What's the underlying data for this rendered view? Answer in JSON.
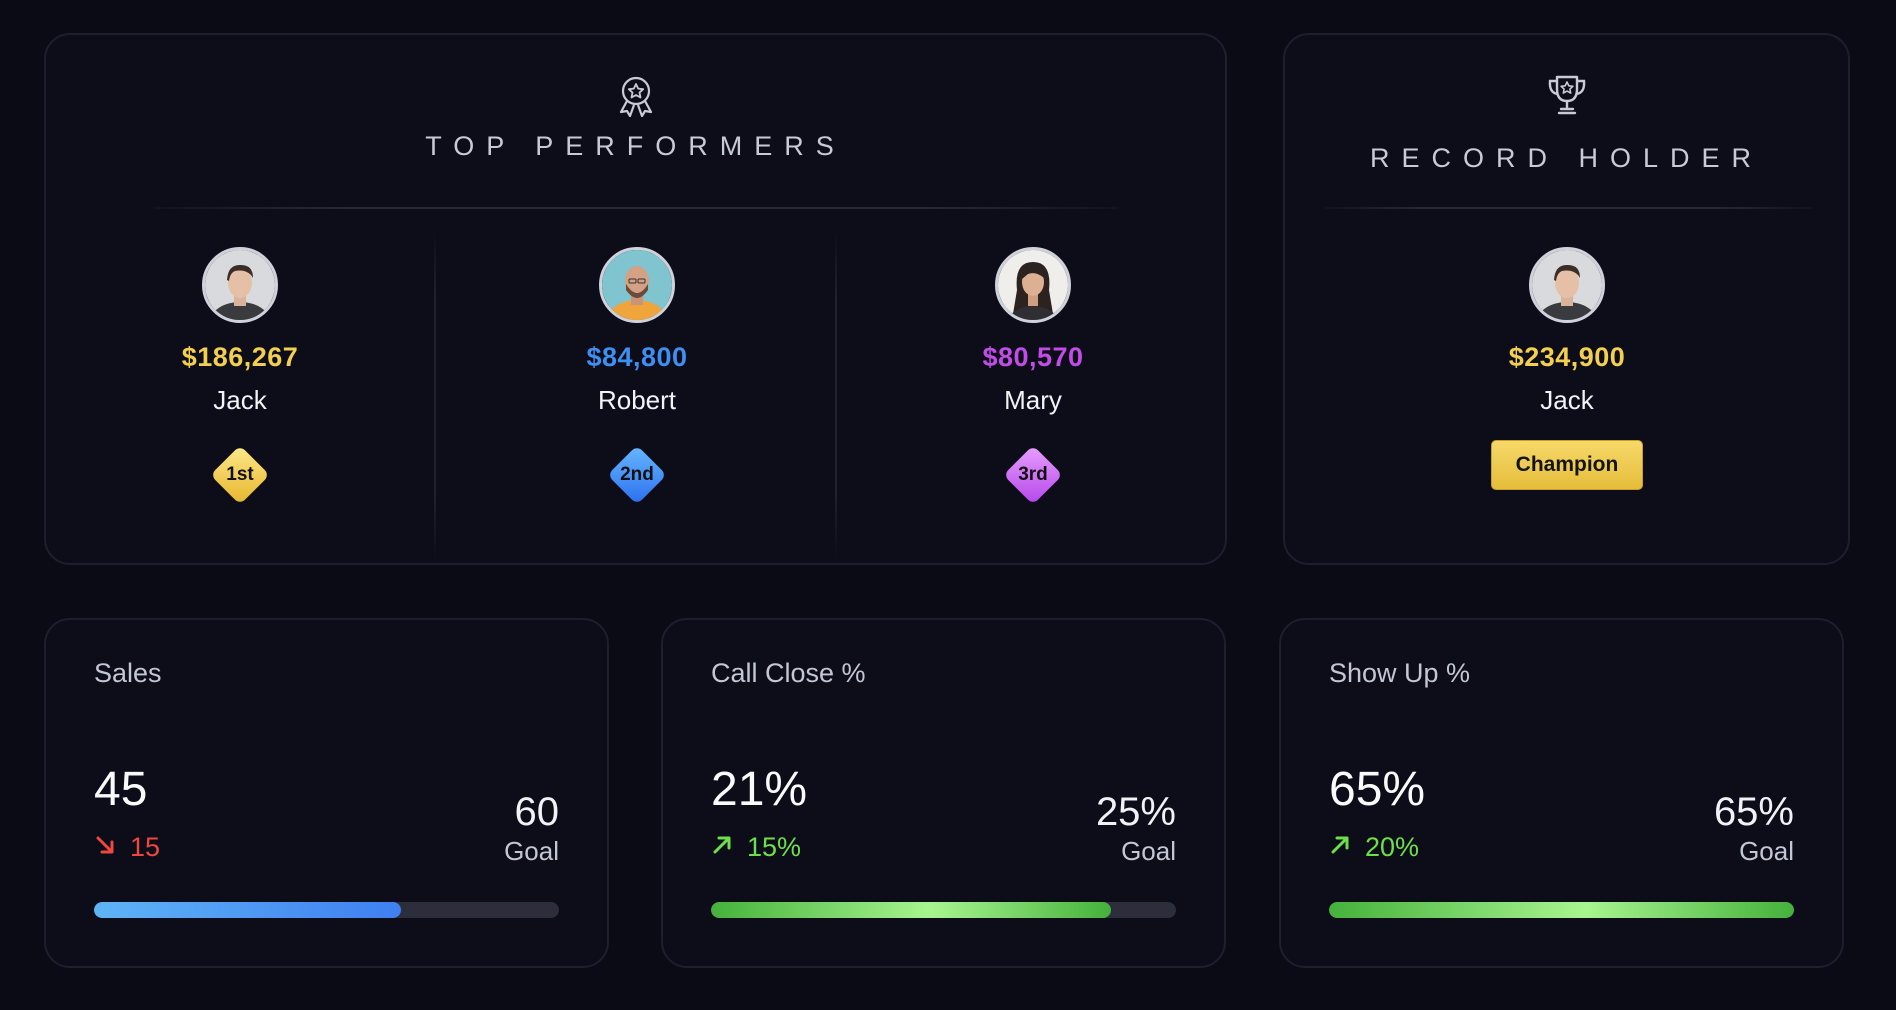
{
  "top_performers": {
    "title": "TOP PERFORMERS",
    "icon": "award-ribbon-icon",
    "performers": [
      {
        "name": "Jack",
        "amount": "$186,267",
        "rank": "1st",
        "color": "#f3cf4f",
        "badge_colors": [
          "#fde98a",
          "#e6b52c"
        ]
      },
      {
        "name": "Robert",
        "amount": "$84,800",
        "rank": "2nd",
        "color": "#3d8ff2",
        "badge_colors": [
          "#68b8ff",
          "#2b6fef"
        ]
      },
      {
        "name": "Mary",
        "amount": "$80,570",
        "rank": "3rd",
        "color": "#c24ce8",
        "badge_colors": [
          "#e8a0ff",
          "#b546ea"
        ]
      }
    ]
  },
  "record_holder": {
    "title": "RECORD HOLDER",
    "icon": "trophy-icon",
    "name": "Jack",
    "amount": "$234,900",
    "badge": "Champion",
    "color": "#f3cf4f"
  },
  "metrics": [
    {
      "label": "Sales",
      "value": "45",
      "delta": "15",
      "delta_direction": "down",
      "delta_color": "#f0463f",
      "goal": "60",
      "goal_label": "Goal",
      "progress": 0.66,
      "bar": "blue"
    },
    {
      "label": "Call Close %",
      "value": "21%",
      "delta": "15%",
      "delta_direction": "up",
      "delta_color": "#6be04a",
      "goal": "25%",
      "goal_label": "Goal",
      "progress": 0.86,
      "bar": "green"
    },
    {
      "label": "Show Up %",
      "value": "65%",
      "delta": "20%",
      "delta_direction": "up",
      "delta_color": "#6be04a",
      "goal": "65%",
      "goal_label": "Goal",
      "progress": 1.0,
      "bar": "green"
    }
  ]
}
